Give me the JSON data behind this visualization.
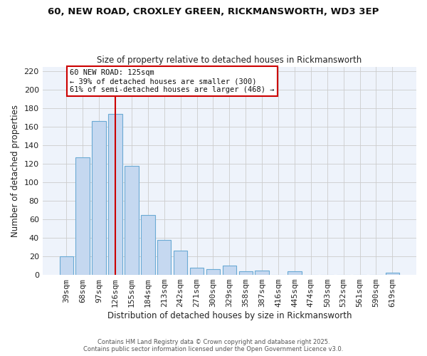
{
  "title": "60, NEW ROAD, CROXLEY GREEN, RICKMANSWORTH, WD3 3EP",
  "subtitle": "Size of property relative to detached houses in Rickmansworth",
  "xlabel": "Distribution of detached houses by size in Rickmansworth",
  "ylabel": "Number of detached properties",
  "bar_labels": [
    "39sqm",
    "68sqm",
    "97sqm",
    "126sqm",
    "155sqm",
    "184sqm",
    "213sqm",
    "242sqm",
    "271sqm",
    "300sqm",
    "329sqm",
    "358sqm",
    "387sqm",
    "416sqm",
    "445sqm",
    "474sqm",
    "503sqm",
    "532sqm",
    "561sqm",
    "590sqm",
    "619sqm"
  ],
  "bar_values": [
    20,
    127,
    166,
    174,
    118,
    65,
    38,
    26,
    8,
    6,
    10,
    4,
    5,
    0,
    4,
    0,
    0,
    0,
    0,
    0,
    2
  ],
  "bar_color": "#c5d8f0",
  "bar_edge_color": "#6aaad4",
  "plot_bg_color": "#eef3fb",
  "fig_bg_color": "#ffffff",
  "grid_color": "#cccccc",
  "annotation_text_line1": "60 NEW ROAD: 125sqm",
  "annotation_text_line2": "← 39% of detached houses are smaller (300)",
  "annotation_text_line3": "61% of semi-detached houses are larger (468) →",
  "annotation_box_color": "#ffffff",
  "annotation_box_edge": "#cc0000",
  "vline_color": "#cc0000",
  "vline_x_index": 3,
  "ylim": [
    0,
    225
  ],
  "yticks": [
    0,
    20,
    40,
    60,
    80,
    100,
    120,
    140,
    160,
    180,
    200,
    220
  ],
  "footer_line1": "Contains HM Land Registry data © Crown copyright and database right 2025.",
  "footer_line2": "Contains public sector information licensed under the Open Government Licence v3.0."
}
